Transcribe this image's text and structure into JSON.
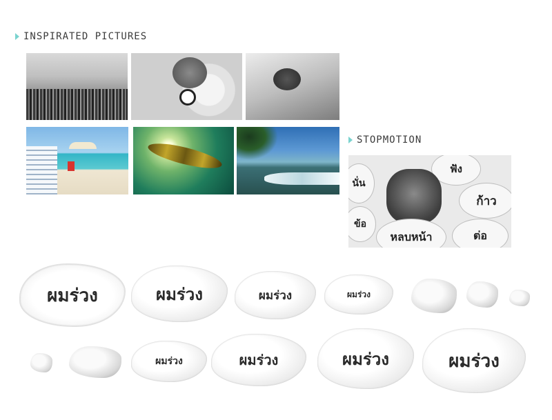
{
  "sections": {
    "inspirated_title": "INSPIRATED PICTURES",
    "stopmotion_title": "STOPMOTION"
  },
  "accent_color": "#7ad3cf",
  "photos": [
    {
      "name": "city-skyline-photo"
    },
    {
      "name": "office-desk-photo"
    },
    {
      "name": "sleeping-man-photo"
    },
    {
      "name": "beach-chair-photo"
    },
    {
      "name": "underwater-kelp-photo"
    },
    {
      "name": "tropical-coast-photo"
    }
  ],
  "stopmotion": {
    "bubbles": [
      "นั่น",
      "ฟัง",
      "ก้าว",
      "ข้อ",
      "หลบหน้า",
      "ต่อ"
    ]
  },
  "sequence": {
    "word": "ผมร่วง",
    "partial_1": "ผมร่วง",
    "partial_2": "ผมร่วง"
  }
}
